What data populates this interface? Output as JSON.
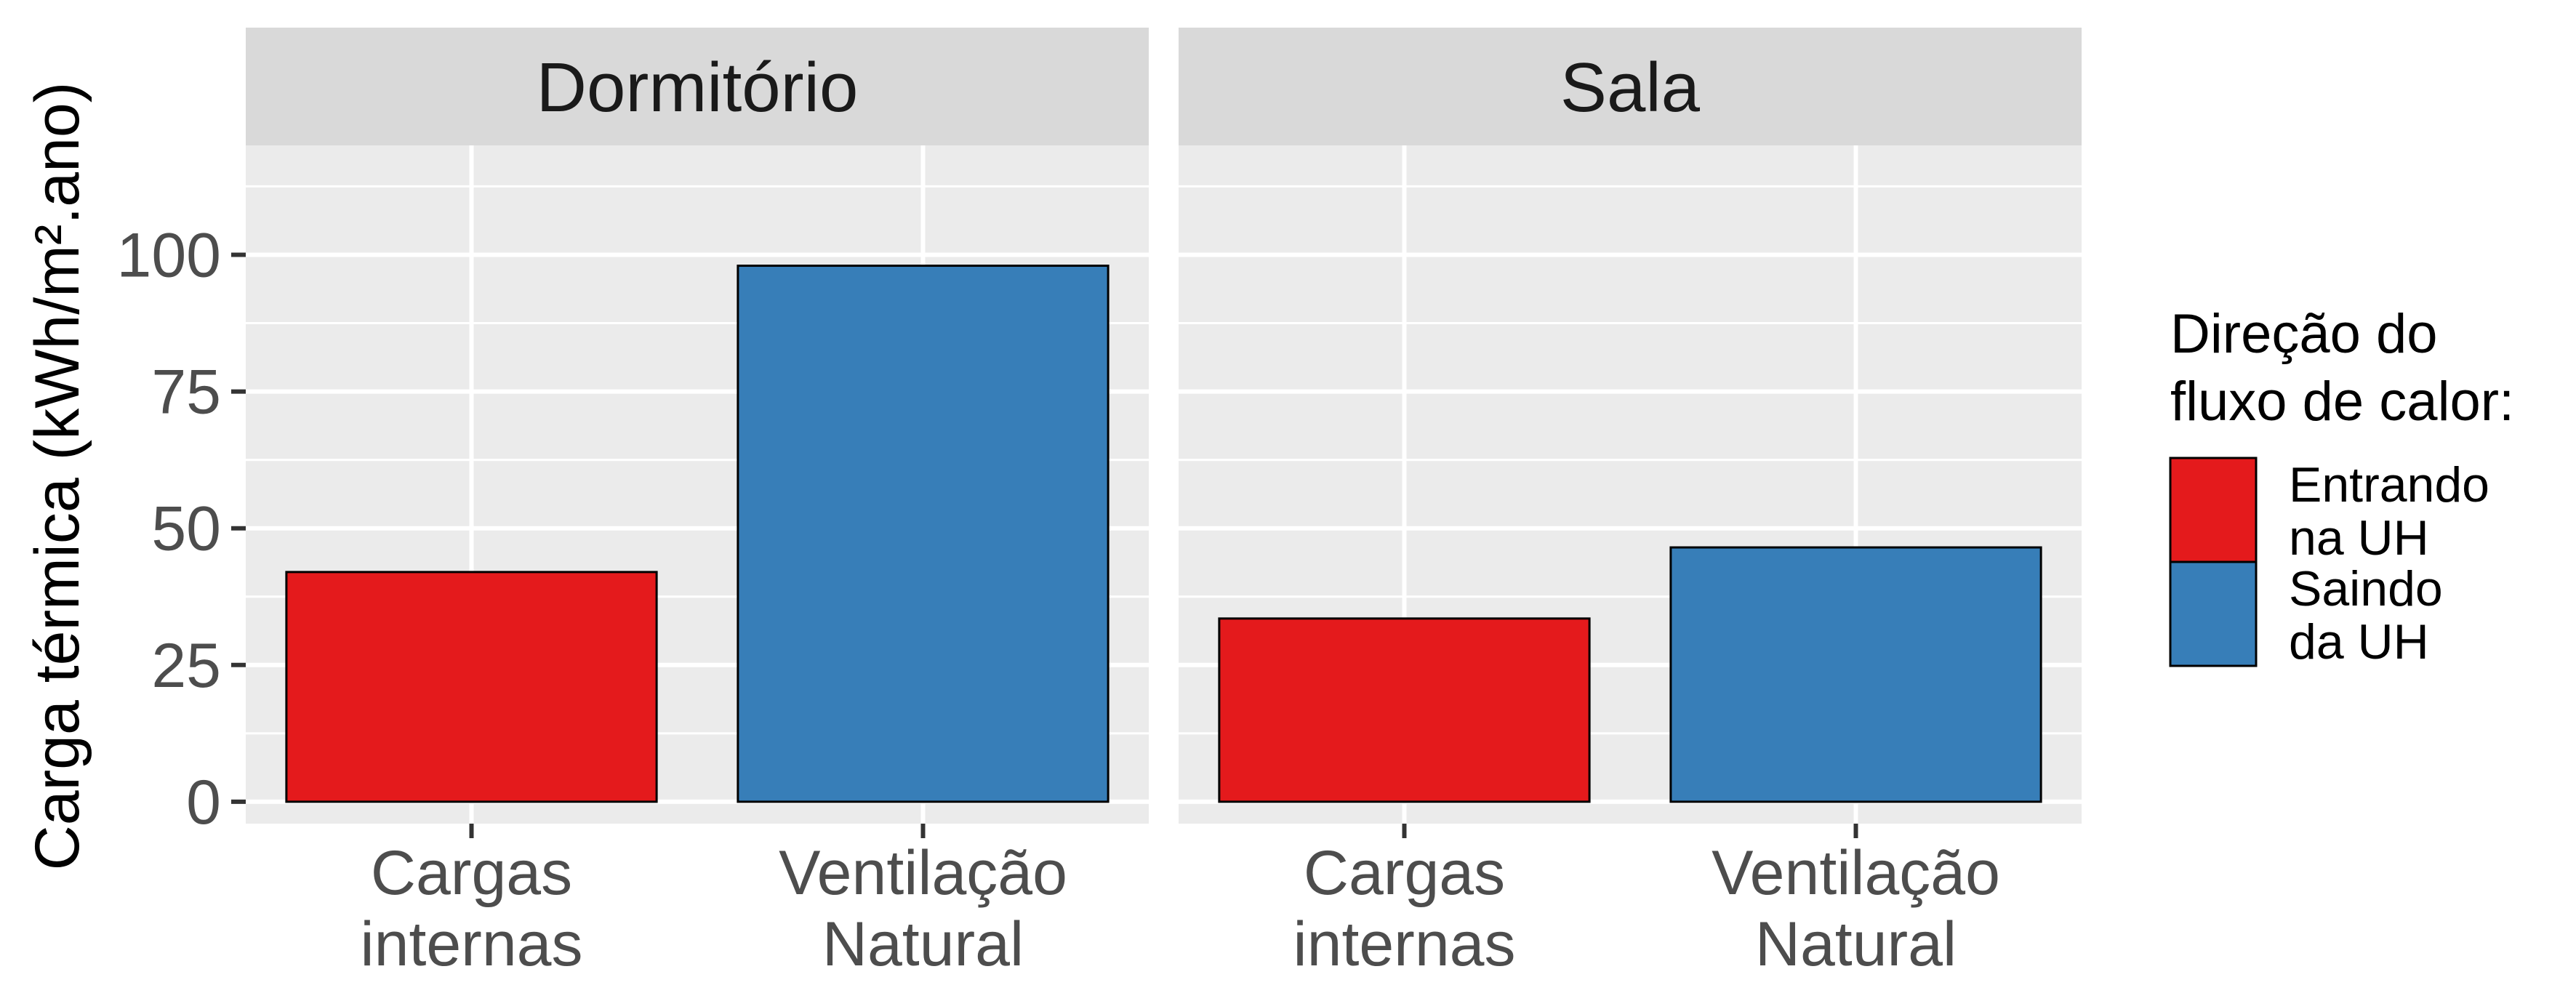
{
  "chart_data": {
    "type": "bar",
    "ylabel": "Carga térmica (kWh/m².ano)",
    "xlabel": "",
    "ylim": [
      -4,
      120
    ],
    "yticks": [
      0,
      25,
      50,
      75,
      100
    ],
    "grid": true,
    "legend": {
      "placement": "right",
      "title_lines": [
        "Direção do",
        "fluxo de calor:"
      ],
      "entries": [
        {
          "lines": [
            "Entrando",
            "na UH"
          ],
          "color": "#E41A1C"
        },
        {
          "lines": [
            "Saindo",
            "da UH"
          ],
          "color": "#377EB8"
        }
      ]
    },
    "categories": [
      {
        "lines": [
          "Cargas",
          "internas"
        ]
      },
      {
        "lines": [
          "Ventilação",
          "Natural"
        ]
      }
    ],
    "facets": [
      {
        "title": "Dormitório",
        "bars": [
          {
            "category": 0,
            "value": 42,
            "color": "#E41A1C"
          },
          {
            "category": 1,
            "value": 98,
            "color": "#377EB8"
          }
        ]
      },
      {
        "title": "Sala",
        "bars": [
          {
            "category": 0,
            "value": 33.5,
            "color": "#E41A1C"
          },
          {
            "category": 1,
            "value": 46.5,
            "color": "#377EB8"
          }
        ]
      }
    ]
  }
}
